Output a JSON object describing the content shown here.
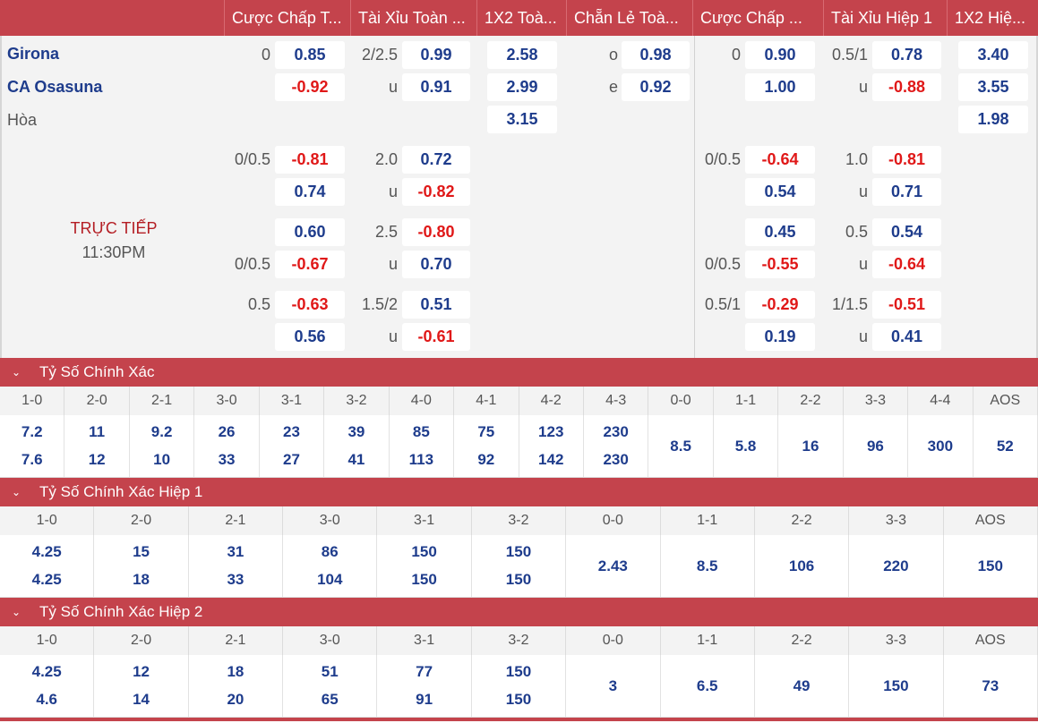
{
  "header": {
    "cols": [
      "Cược Chấp T...",
      "Tài Xỉu Toàn ...",
      "1X2 Toà...",
      "Chẵn Lẻ Toà...",
      "Cược Chấp ...",
      "Tài Xỉu Hiệp 1",
      "1X2 Hiệ..."
    ]
  },
  "teams": {
    "home": "Girona",
    "away": "CA Osasuna",
    "draw": "Hòa"
  },
  "live": {
    "status": "TRỰC TIẾP",
    "time": "11:30PM"
  },
  "market_rows": [
    {
      "hc_l": "0",
      "hc1": "0.85",
      "hc2": "-0.92",
      "ou_l1": "2/2.5",
      "ou1": "0.99",
      "ou_l2": "u",
      "ou2": "0.91",
      "x1": "2.58",
      "x2": "2.99",
      "x3": "3.15",
      "oe_l1": "o",
      "oe1": "0.98",
      "oe_l2": "e",
      "oe2": "0.92",
      "h1hc_l": "0",
      "h1hc1": "0.90",
      "h1hc2": "1.00",
      "h1ou_l1": "0.5/1",
      "h1ou1": "0.78",
      "h1ou_l2": "u",
      "h1ou2": "-0.88",
      "h1x1": "3.40",
      "h1x2": "3.55",
      "h1x3": "1.98"
    },
    {
      "hc_l": "0/0.5",
      "hc1": "-0.81",
      "hc2": "0.74",
      "ou_l1": "2.0",
      "ou1": "0.72",
      "ou_l2": "u",
      "ou2": "-0.82",
      "h1hc_l": "0/0.5",
      "h1hc1": "-0.64",
      "h1hc2": "0.54",
      "h1ou_l1": "1.0",
      "h1ou1": "-0.81",
      "h1ou_l2": "u",
      "h1ou2": "0.71"
    },
    {
      "hc_l2": "0/0.5",
      "hc1": "0.60",
      "hc2": "-0.67",
      "ou_l1": "2.5",
      "ou1": "-0.80",
      "ou_l2": "u",
      "ou2": "0.70",
      "h1hc_l2": "0/0.5",
      "h1hc1": "0.45",
      "h1hc2": "-0.55",
      "h1ou_l1": "0.5",
      "h1ou1": "0.54",
      "h1ou_l2": "u",
      "h1ou2": "-0.64"
    },
    {
      "hc_l": "0.5",
      "hc1": "-0.63",
      "hc2": "0.56",
      "ou_l1": "1.5/2",
      "ou1": "0.51",
      "ou_l2": "u",
      "ou2": "-0.61",
      "h1hc_l": "0.5/1",
      "h1hc1": "-0.29",
      "h1hc2": "0.19",
      "h1ou_l1": "1/1.5",
      "h1ou1": "-0.51",
      "h1ou_l2": "u",
      "h1ou2": "0.41"
    }
  ],
  "sections": [
    {
      "title": "Tỷ Số Chính Xác",
      "cols": [
        [
          "1-0",
          "7.2",
          "7.6"
        ],
        [
          "2-0",
          "11",
          "12"
        ],
        [
          "2-1",
          "9.2",
          "10"
        ],
        [
          "3-0",
          "26",
          "33"
        ],
        [
          "3-1",
          "23",
          "27"
        ],
        [
          "3-2",
          "39",
          "41"
        ],
        [
          "4-0",
          "85",
          "113"
        ],
        [
          "4-1",
          "75",
          "92"
        ],
        [
          "4-2",
          "123",
          "142"
        ],
        [
          "4-3",
          "230",
          "230"
        ],
        [
          "0-0",
          "8.5"
        ],
        [
          "1-1",
          "5.8"
        ],
        [
          "2-2",
          "16"
        ],
        [
          "3-3",
          "96"
        ],
        [
          "4-4",
          "300"
        ],
        [
          "AOS",
          "52"
        ]
      ]
    },
    {
      "title": "Tỷ Số Chính Xác Hiệp 1",
      "cols": [
        [
          "1-0",
          "4.25",
          "4.25"
        ],
        [
          "2-0",
          "15",
          "18"
        ],
        [
          "2-1",
          "31",
          "33"
        ],
        [
          "3-0",
          "86",
          "104"
        ],
        [
          "3-1",
          "150",
          "150"
        ],
        [
          "3-2",
          "150",
          "150"
        ],
        [
          "0-0",
          "2.43"
        ],
        [
          "1-1",
          "8.5"
        ],
        [
          "2-2",
          "106"
        ],
        [
          "3-3",
          "220"
        ],
        [
          "AOS",
          "150"
        ]
      ]
    },
    {
      "title": "Tỷ Số Chính Xác Hiệp 2",
      "cols": [
        [
          "1-0",
          "4.25",
          "4.6"
        ],
        [
          "2-0",
          "12",
          "14"
        ],
        [
          "2-1",
          "18",
          "20"
        ],
        [
          "3-0",
          "51",
          "65"
        ],
        [
          "3-1",
          "77",
          "91"
        ],
        [
          "3-2",
          "150",
          "150"
        ],
        [
          "0-0",
          "3"
        ],
        [
          "1-1",
          "6.5"
        ],
        [
          "2-2",
          "49"
        ],
        [
          "3-3",
          "150"
        ],
        [
          "AOS",
          "73"
        ]
      ]
    }
  ]
}
